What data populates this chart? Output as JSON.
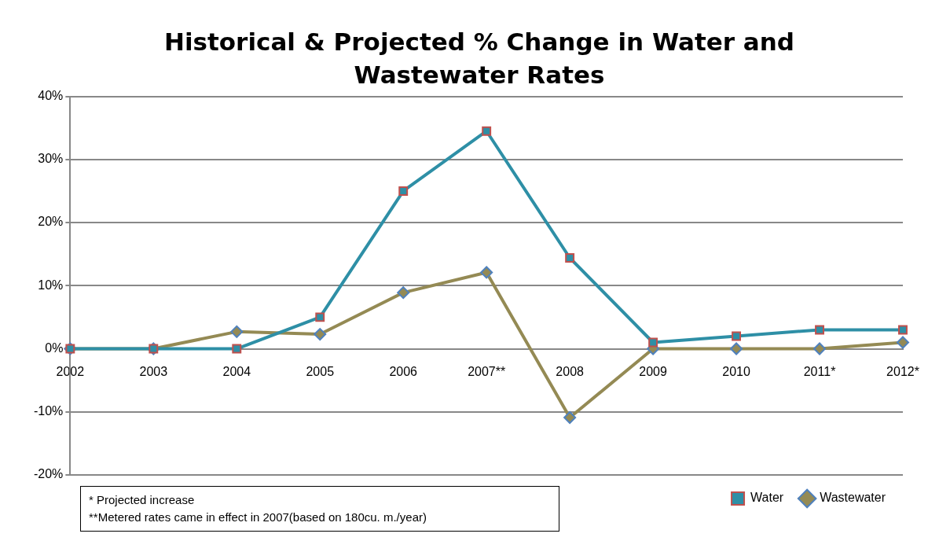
{
  "chart_data": {
    "type": "line",
    "title": "Historical & Projected % Change in Water and Wastewater Rates",
    "categories": [
      "2002",
      "2003",
      "2004",
      "2005",
      "2006",
      "2007**",
      "2008",
      "2009",
      "2010",
      "2011*",
      "2012*"
    ],
    "series": [
      {
        "name": "Water",
        "color": "#2e8fa6",
        "marker": "square",
        "values": [
          0,
          0,
          0,
          5,
          25,
          34.5,
          14.4,
          1,
          2,
          3,
          3
        ]
      },
      {
        "name": "Wastewater",
        "color": "#948a54",
        "marker": "diamond",
        "values": [
          0,
          0,
          2.7,
          2.3,
          8.9,
          12.1,
          -10.9,
          0,
          0,
          0,
          1
        ]
      }
    ],
    "ylim": [
      -20,
      40
    ],
    "yticks": [
      {
        "value": -20,
        "label": "-20%"
      },
      {
        "value": -10,
        "label": "-10%"
      },
      {
        "value": 0,
        "label": "0%"
      },
      {
        "value": 10,
        "label": "10%"
      },
      {
        "value": 20,
        "label": "20%"
      },
      {
        "value": 30,
        "label": "30%"
      },
      {
        "value": 40,
        "label": "40%"
      }
    ],
    "grid": "y",
    "legend": "bottom right",
    "line_style": "solid",
    "annotations": [
      "* Projected increase",
      "**Metered rates came in effect in 2007(based on 180cu. m./year)"
    ]
  }
}
